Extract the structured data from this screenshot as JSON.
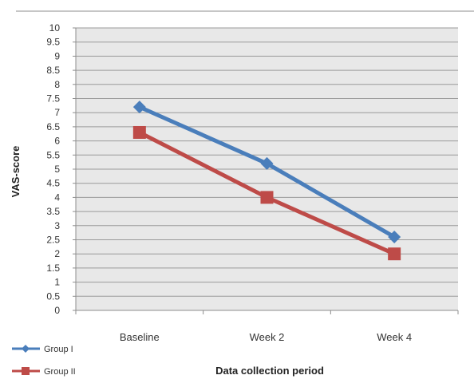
{
  "chart_data": {
    "type": "line",
    "categories": [
      "Baseline",
      "Week 2",
      "Week 4"
    ],
    "series": [
      {
        "name": "Group I",
        "values": [
          7.2,
          5.2,
          2.6
        ],
        "color": "#4a7ebb",
        "marker": "diamond"
      },
      {
        "name": "Group II",
        "values": [
          6.3,
          4.0,
          2.0
        ],
        "color": "#be4b48",
        "marker": "square"
      }
    ],
    "y_ticks": [
      "0",
      "0.5",
      "1",
      "1.5",
      "2",
      "2.5",
      "3",
      "3.5",
      "4",
      "4.5",
      "5",
      "5.5",
      "6",
      "6.5",
      "7",
      "7.5",
      "8",
      "8.5",
      "9",
      "9.5",
      "10"
    ],
    "ylim": [
      0,
      10
    ],
    "ylabel": "VAS-score",
    "xlabel": "Data collection period",
    "grid": true,
    "legend_position": "bottom-left",
    "plot_background": "#e8e8e8",
    "gridline_color": "#9a9a9a"
  }
}
